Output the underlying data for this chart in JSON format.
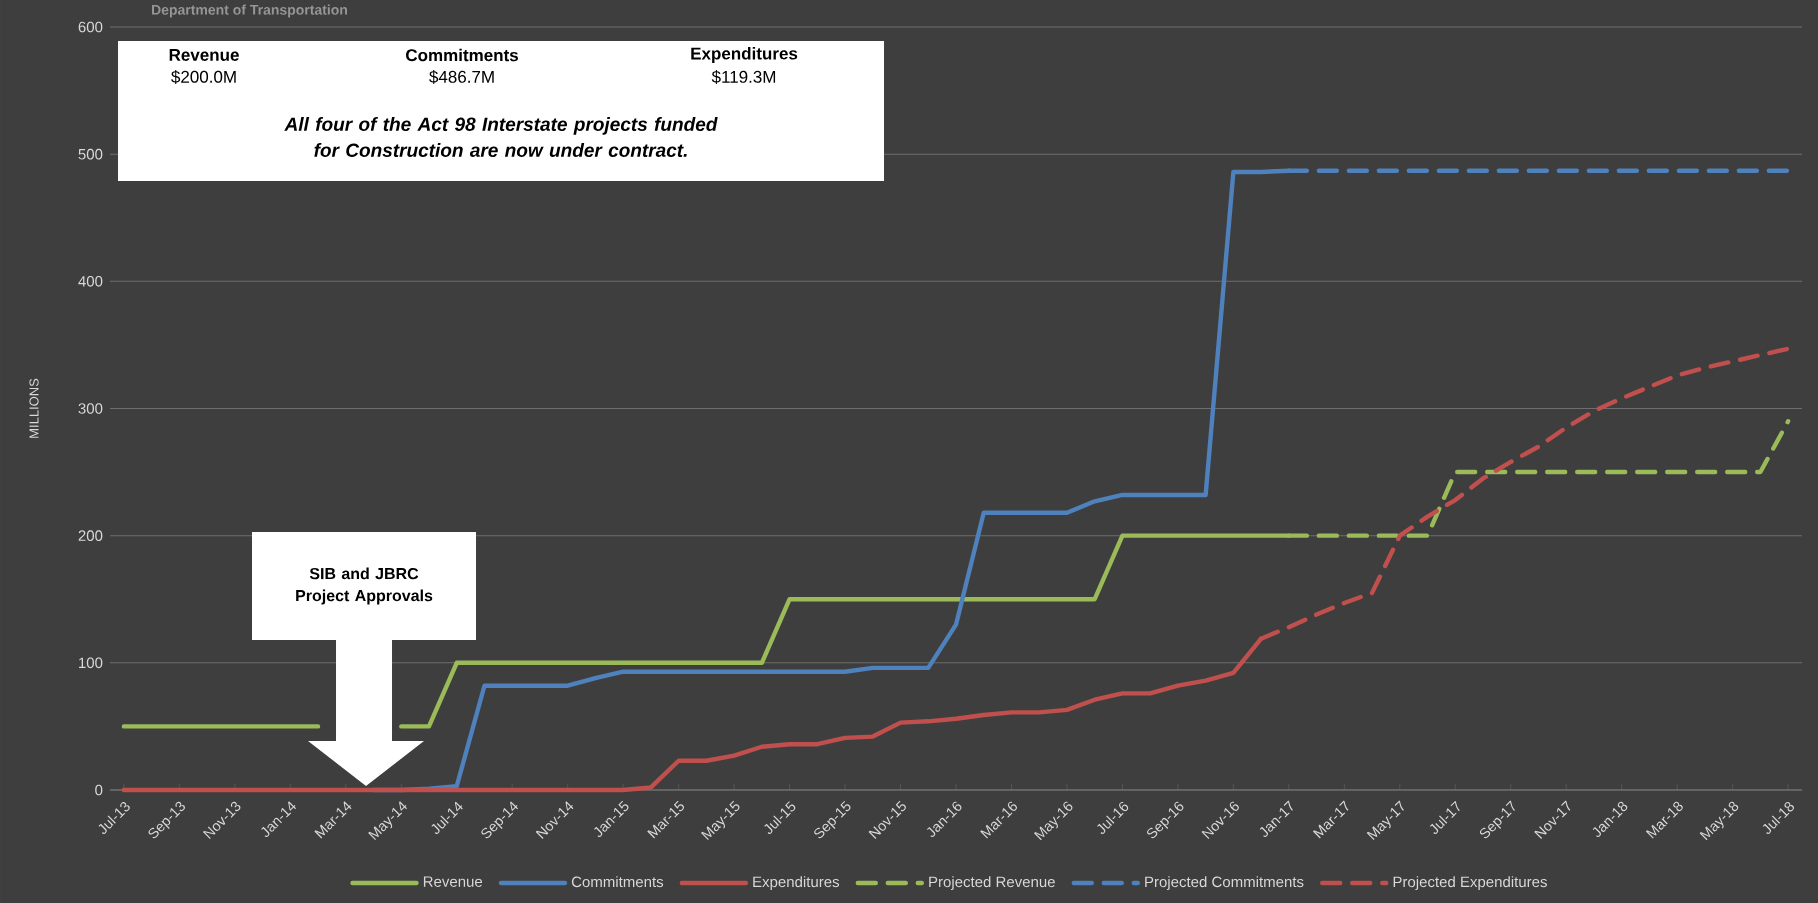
{
  "chart_data": {
    "type": "line",
    "title": "Department of Transportation",
    "ylabel": "MILLIONS",
    "categories": [
      "Jul-13",
      null,
      "Sep-13",
      null,
      "Nov-13",
      null,
      "Jan-14",
      null,
      "Mar-14",
      null,
      "May-14",
      null,
      "Jul-14",
      null,
      "Sep-14",
      null,
      "Nov-14",
      null,
      "Jan-15",
      null,
      "Mar-15",
      null,
      "May-15",
      null,
      "Jul-15",
      null,
      "Sep-15",
      null,
      "Nov-15",
      null,
      "Jan-16",
      null,
      "Mar-16",
      null,
      "May-16",
      null,
      "Jul-16",
      null,
      "Sep-16",
      null,
      "Nov-16",
      null,
      "Jan-17",
      null,
      "Mar-17",
      null,
      "May-17",
      null,
      "Jul-17",
      null,
      "Sep-17",
      null,
      "Nov-17",
      null,
      "Jan-18",
      null,
      "Mar-18",
      null,
      "May-18",
      null,
      "Jul-18"
    ],
    "series": [
      {
        "name": "Revenue",
        "color": "#9bbb59",
        "values": [
          50,
          50,
          50,
          50,
          50,
          50,
          50,
          50,
          null,
          null,
          50,
          50,
          100,
          100,
          100,
          100,
          100,
          100,
          100,
          100,
          100,
          100,
          100,
          100,
          150,
          150,
          150,
          150,
          150,
          150,
          150,
          150,
          150,
          150,
          150,
          150,
          200,
          200,
          200,
          200,
          200,
          200,
          200,
          null,
          null,
          null,
          null,
          null,
          null,
          null,
          null,
          null,
          null,
          null,
          null,
          null,
          null,
          null,
          null,
          null,
          null
        ]
      },
      {
        "name": "Commitments",
        "color": "#4f81bd",
        "values": [
          null,
          null,
          null,
          null,
          null,
          null,
          null,
          null,
          null,
          0,
          0,
          1,
          3,
          82,
          82,
          82,
          82,
          88,
          93,
          93,
          93,
          93,
          93,
          93,
          93,
          93,
          93,
          96,
          96,
          96,
          130,
          218,
          218,
          218,
          218,
          227,
          232,
          232,
          232,
          232,
          486,
          486,
          487,
          null,
          null,
          null,
          null,
          null,
          null,
          null,
          null,
          null,
          null,
          null,
          null,
          null,
          null,
          null,
          null,
          null,
          null
        ]
      },
      {
        "name": "Expenditures",
        "color": "#c0504d",
        "values": [
          0,
          0,
          0,
          0,
          0,
          0,
          0,
          0,
          0,
          0,
          0,
          0,
          0,
          0,
          0,
          0,
          0,
          0,
          0,
          2,
          23,
          23,
          27,
          34,
          36,
          36,
          41,
          42,
          53,
          54,
          56,
          59,
          61,
          61,
          63,
          71,
          76,
          76,
          82,
          86,
          92,
          119,
          null,
          null,
          null,
          null,
          null,
          null,
          null,
          null,
          null,
          null,
          null,
          null,
          null,
          null,
          null,
          null,
          null,
          null,
          null
        ]
      },
      {
        "name": "Projected Revenue",
        "color": "#9bbb59",
        "line_style": "dashed",
        "values": [
          null,
          null,
          null,
          null,
          null,
          null,
          null,
          null,
          null,
          null,
          null,
          null,
          null,
          null,
          null,
          null,
          null,
          null,
          null,
          null,
          null,
          null,
          null,
          null,
          null,
          null,
          null,
          null,
          null,
          null,
          null,
          null,
          null,
          null,
          null,
          null,
          null,
          null,
          null,
          null,
          null,
          null,
          200,
          200,
          200,
          200,
          200,
          200,
          250,
          250,
          250,
          250,
          250,
          250,
          250,
          250,
          250,
          250,
          250,
          250,
          290
        ]
      },
      {
        "name": "Projected Commitments",
        "color": "#4f81bd",
        "line_style": "dashed",
        "values": [
          null,
          null,
          null,
          null,
          null,
          null,
          null,
          null,
          null,
          null,
          null,
          null,
          null,
          null,
          null,
          null,
          null,
          null,
          null,
          null,
          null,
          null,
          null,
          null,
          null,
          null,
          null,
          null,
          null,
          null,
          null,
          null,
          null,
          null,
          null,
          null,
          null,
          null,
          null,
          null,
          null,
          null,
          487,
          487,
          487,
          487,
          487,
          487,
          487,
          487,
          487,
          487,
          487,
          487,
          487,
          487,
          487,
          487,
          487,
          487,
          487
        ]
      },
      {
        "name": "Projected Expenditures",
        "color": "#c0504d",
        "line_style": "dashed",
        "values": [
          null,
          null,
          null,
          null,
          null,
          null,
          null,
          null,
          null,
          null,
          null,
          null,
          null,
          null,
          null,
          null,
          null,
          null,
          null,
          null,
          null,
          null,
          null,
          null,
          null,
          null,
          null,
          null,
          null,
          null,
          null,
          null,
          null,
          null,
          null,
          null,
          null,
          null,
          null,
          null,
          null,
          119,
          128,
          138,
          147,
          155,
          200,
          215,
          228,
          245,
          258,
          270,
          285,
          298,
          308,
          317,
          326,
          332,
          337,
          342,
          347
        ]
      }
    ],
    "ylim": [
      0,
      600
    ],
    "yticks": [
      0,
      100,
      200,
      300,
      400,
      500,
      600
    ],
    "grid": "y",
    "legend": "bottom",
    "annotations": [
      "Revenue",
      "$200.0M",
      "Commitments",
      "$486.7M",
      "Expenditures",
      "$119.3M",
      "All four of the Act 98 Interstate projects funded for Construction are now under contract.",
      "SIB and JBRC Project Approvals"
    ]
  }
}
